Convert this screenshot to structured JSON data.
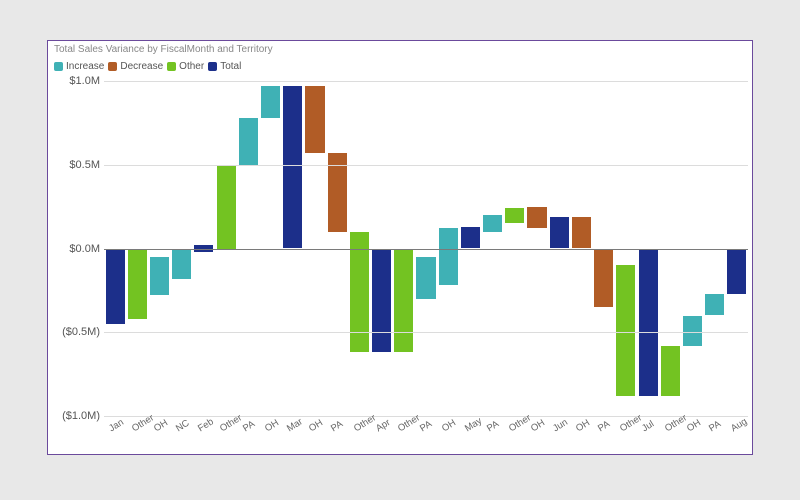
{
  "chart": {
    "type": "waterfall",
    "title": "Total Sales Variance by FiscalMonth and Territory",
    "title_fontsize": 10,
    "title_color": "#888888",
    "card_border_color": "#6b4a9c",
    "background_color": "#ffffff",
    "page_background": "#e8e8e8",
    "legend": [
      {
        "label": "Increase",
        "color": "#3fb1b5"
      },
      {
        "label": "Decrease",
        "color": "#b15c26"
      },
      {
        "label": "Other",
        "color": "#73c322"
      },
      {
        "label": "Total",
        "color": "#1c2f8a"
      }
    ],
    "y_axis": {
      "min": -1.0,
      "max": 1.0,
      "ticks": [
        {
          "v": 1.0,
          "label": "$1.0M"
        },
        {
          "v": 0.5,
          "label": "$0.5M"
        },
        {
          "v": 0.0,
          "label": "$0.0M"
        },
        {
          "v": -0.5,
          "label": "($0.5M)"
        },
        {
          "v": -1.0,
          "label": "($1.0M)"
        }
      ],
      "label_fontsize": 11,
      "label_color": "#555555",
      "gridline_color": "#dcdcdc",
      "zero_line_color": "#7a7a7a"
    },
    "x_labels": {
      "fontsize": 9.5,
      "color": "#666666",
      "rotation_deg": -32
    },
    "colors": {
      "increase": "#3fb1b5",
      "decrease": "#b15c26",
      "other": "#73c322",
      "total": "#1c2f8a"
    },
    "bar_width_ratio": 0.86,
    "series": [
      {
        "label": "Jan",
        "kind": "total",
        "start": 0.0,
        "end": -0.45
      },
      {
        "label": "Other",
        "kind": "other",
        "start": 0.0,
        "end": -0.42
      },
      {
        "label": "OH",
        "kind": "increase",
        "start": -0.28,
        "end": -0.05
      },
      {
        "label": "NC",
        "kind": "increase",
        "start": -0.18,
        "end": 0.0
      },
      {
        "label": "Feb",
        "kind": "total",
        "start": -0.02,
        "end": 0.02
      },
      {
        "label": "Other",
        "kind": "other",
        "start": 0.0,
        "end": 0.5
      },
      {
        "label": "PA",
        "kind": "increase",
        "start": 0.5,
        "end": 0.78
      },
      {
        "label": "OH",
        "kind": "increase",
        "start": 0.78,
        "end": 0.97
      },
      {
        "label": "Mar",
        "kind": "total",
        "start": 0.0,
        "end": 0.97
      },
      {
        "label": "OH",
        "kind": "decrease",
        "start": 0.97,
        "end": 0.57
      },
      {
        "label": "PA",
        "kind": "decrease",
        "start": 0.57,
        "end": 0.1
      },
      {
        "label": "Other",
        "kind": "other",
        "start": 0.1,
        "end": -0.62
      },
      {
        "label": "Apr",
        "kind": "total",
        "start": 0.0,
        "end": -0.62
      },
      {
        "label": "Other",
        "kind": "other",
        "start": 0.0,
        "end": -0.62
      },
      {
        "label": "PA",
        "kind": "increase",
        "start": -0.3,
        "end": -0.05
      },
      {
        "label": "OH",
        "kind": "increase",
        "start": -0.22,
        "end": 0.12
      },
      {
        "label": "May",
        "kind": "total",
        "start": 0.0,
        "end": 0.13
      },
      {
        "label": "PA",
        "kind": "increase",
        "start": 0.1,
        "end": 0.2
      },
      {
        "label": "Other",
        "kind": "other",
        "start": 0.15,
        "end": 0.24
      },
      {
        "label": "OH",
        "kind": "decrease",
        "start": 0.25,
        "end": 0.12
      },
      {
        "label": "Jun",
        "kind": "total",
        "start": 0.0,
        "end": 0.19
      },
      {
        "label": "OH",
        "kind": "decrease",
        "start": 0.19,
        "end": 0.0
      },
      {
        "label": "PA",
        "kind": "decrease",
        "start": 0.0,
        "end": -0.35
      },
      {
        "label": "Other",
        "kind": "other",
        "start": -0.1,
        "end": -0.88
      },
      {
        "label": "Jul",
        "kind": "total",
        "start": 0.0,
        "end": -0.88
      },
      {
        "label": "Other",
        "kind": "other",
        "start": -0.58,
        "end": -0.88
      },
      {
        "label": "OH",
        "kind": "increase",
        "start": -0.58,
        "end": -0.4
      },
      {
        "label": "PA",
        "kind": "increase",
        "start": -0.4,
        "end": -0.27
      },
      {
        "label": "Aug",
        "kind": "total",
        "start": 0.0,
        "end": -0.27
      }
    ]
  }
}
